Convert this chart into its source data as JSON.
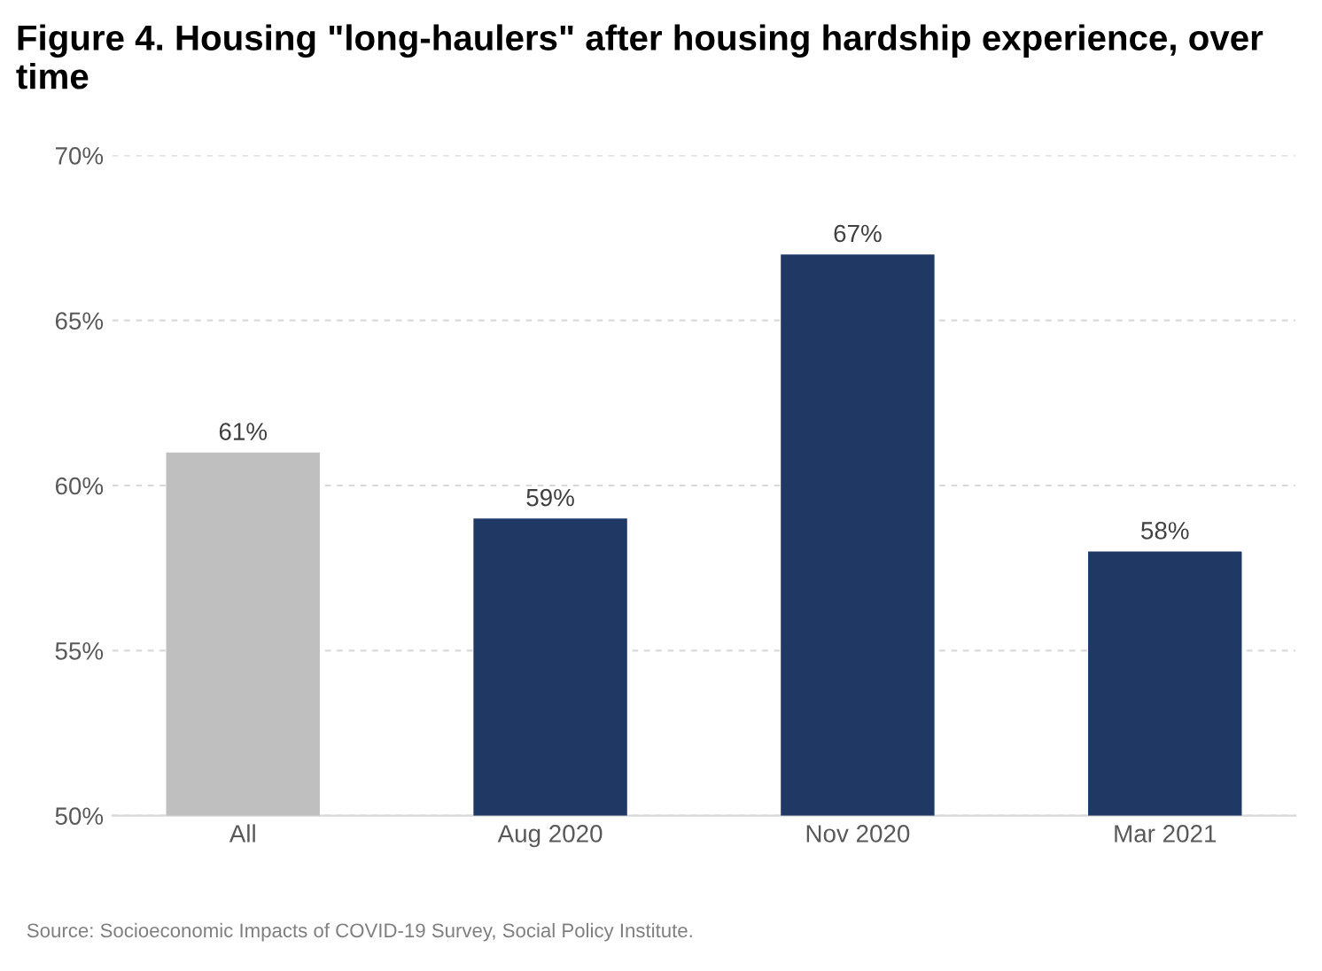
{
  "chart_data": {
    "type": "bar",
    "title": "Figure 4. Housing \"long-haulers\" after housing hardship experience, over time",
    "categories": [
      "All",
      "Aug 2020",
      "Nov 2020",
      "Mar 2021"
    ],
    "values": [
      61,
      59,
      67,
      58
    ],
    "value_labels": [
      "61%",
      "59%",
      "67%",
      "58%"
    ],
    "colors": [
      "#bfbfbf",
      "#1f3864",
      "#1f3864",
      "#1f3864"
    ],
    "ylim": [
      50,
      70
    ],
    "yticks": [
      {
        "value": 50,
        "label": "50%"
      },
      {
        "value": 55,
        "label": "55%"
      },
      {
        "value": 60,
        "label": "60%"
      },
      {
        "value": 65,
        "label": "65%"
      },
      {
        "value": 70,
        "label": "70%"
      }
    ],
    "grid": "y",
    "annotations": [
      "Source: Socioeconomic Impacts of COVID-19 Survey, Social Policy Institute."
    ]
  }
}
